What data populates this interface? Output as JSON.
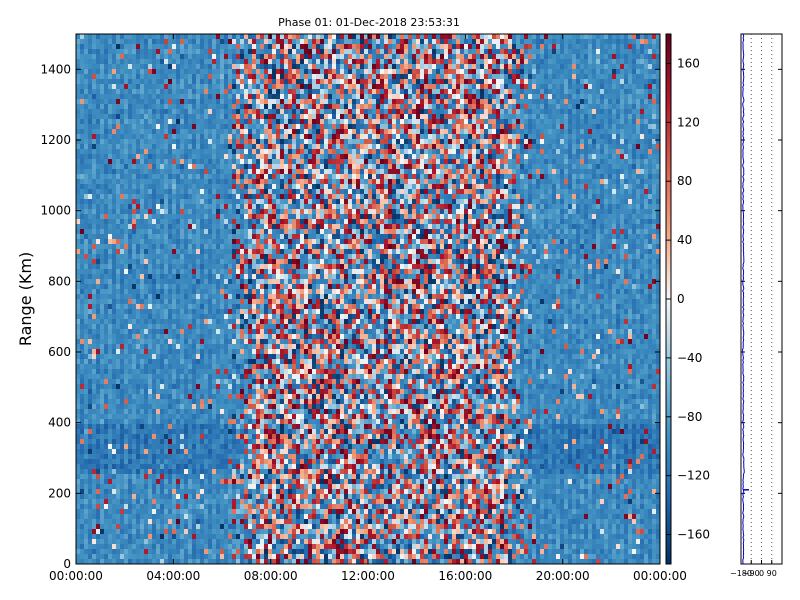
{
  "chart_data": [
    {
      "type": "heatmap",
      "title": "Phase 01: 01-Dec-2018 23:53:31",
      "xlabel": "",
      "ylabel": "Range (Km)",
      "xlim": [
        "00:00:00",
        "24:00:00"
      ],
      "ylim": [
        0,
        1500
      ],
      "x_ticks": [
        "00:00:00",
        "04:00:00",
        "08:00:00",
        "12:00:00",
        "16:00:00",
        "20:00:00",
        "00:00:00"
      ],
      "y_ticks": [
        "0",
        "200",
        "400",
        "600",
        "800",
        "1000",
        "1200",
        "1400"
      ],
      "colorbar": {
        "range": [
          -180,
          180
        ],
        "ticks": [
          "160",
          "120",
          "80",
          "40",
          "0",
          "−40",
          "−80",
          "−120",
          "−160"
        ],
        "colormap": "RdBu_r",
        "low_color": "#053061",
        "mid_color": "#f7f7f7",
        "high_color": "#67001f"
      },
      "description_of_field": {
        "background_phase_deg": -100,
        "noisy_period": [
          "06:00:00",
          "19:00:00"
        ],
        "noisy_phase_range_deg": [
          -180,
          180
        ],
        "band_range_km": [
          250,
          400
        ]
      }
    },
    {
      "type": "line",
      "xlim": [
        -180,
        180
      ],
      "ylim": [
        0,
        1500
      ],
      "x_ticks": [
        "−180",
        "−90",
        "0",
        "90"
      ],
      "grid": "dotted vertical",
      "series": [
        {
          "color": "#0000cc",
          "baseline_value": -160,
          "spike": {
            "range_km": 210,
            "value": -110
          }
        }
      ]
    }
  ]
}
